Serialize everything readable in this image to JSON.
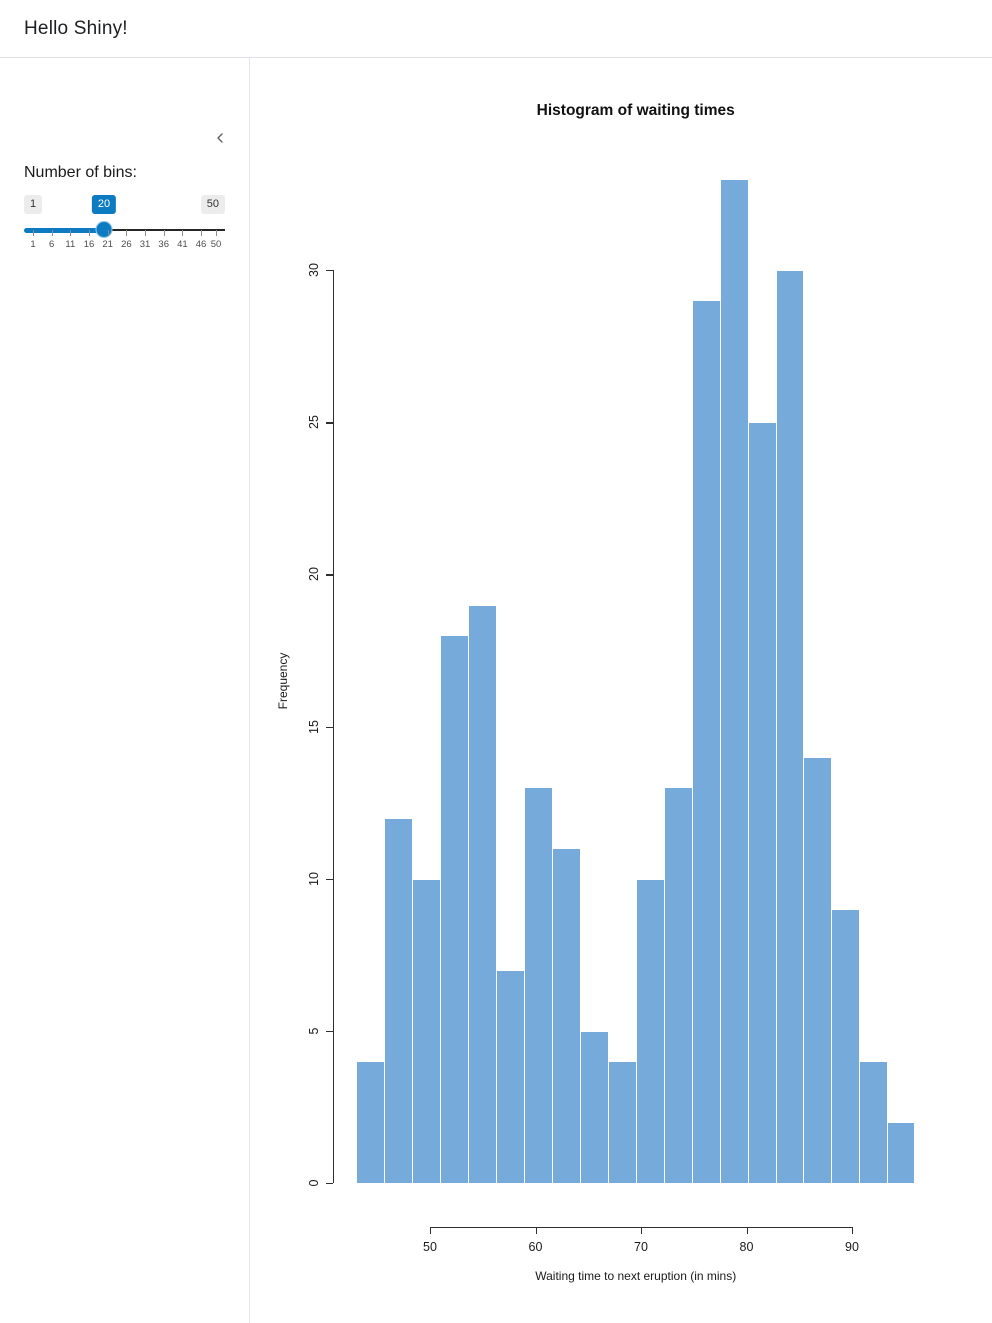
{
  "header": {
    "title": "Hello Shiny!"
  },
  "sidebar": {
    "collapse_icon": "chevron-left",
    "slider": {
      "label": "Number of bins:",
      "min": 1,
      "max": 50,
      "value": 20,
      "min_label": "1",
      "max_label": "50",
      "value_label": "20",
      "tick_labels": [
        1,
        6,
        11,
        16,
        21,
        26,
        31,
        36,
        41,
        46,
        50
      ],
      "accent_color": "#0D7BC2",
      "inactive_track_color": "#262626"
    }
  },
  "chart_data": {
    "type": "bar",
    "subtype": "histogram",
    "title": "Histogram of waiting times",
    "xlabel": "Waiting time to next eruption (in mins)",
    "ylabel": "Frequency",
    "bin_edges": [
      43,
      45.65,
      48.3,
      50.95,
      53.6,
      56.25,
      58.9,
      61.55,
      64.2,
      66.85,
      69.5,
      72.15,
      74.8,
      77.45,
      80.1,
      82.75,
      85.4,
      88.05,
      90.7,
      93.35,
      96
    ],
    "counts": [
      4,
      12,
      10,
      18,
      19,
      7,
      13,
      11,
      5,
      4,
      10,
      13,
      29,
      33,
      25,
      30,
      14,
      9,
      4,
      2
    ],
    "x_ticks": [
      50,
      60,
      70,
      80,
      90
    ],
    "y_ticks": [
      0,
      5,
      10,
      15,
      20,
      25,
      30
    ],
    "xlim": [
      43,
      96
    ],
    "ylim": [
      0,
      33
    ],
    "grid": false,
    "legend": "none",
    "bar_fill": "#75AADB",
    "bar_border": "#FFFFFF"
  }
}
